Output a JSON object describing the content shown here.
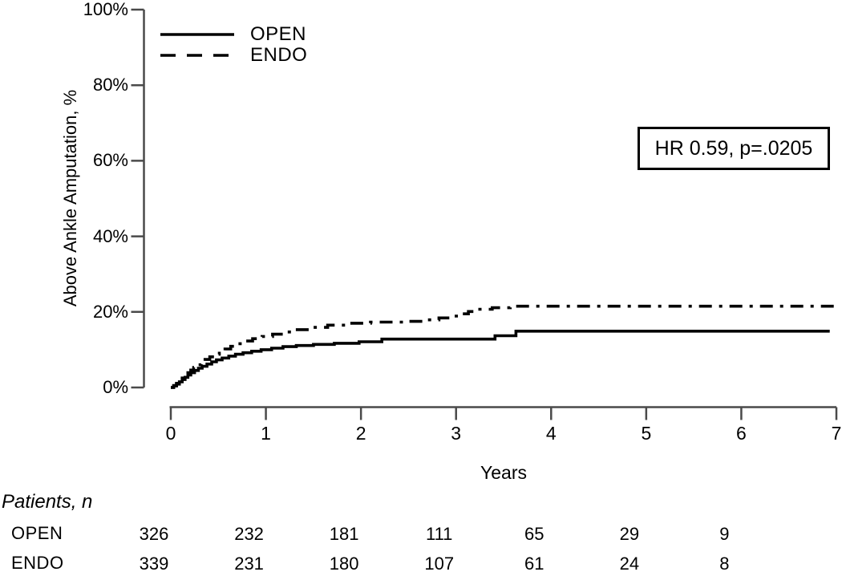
{
  "chart_data": {
    "type": "line",
    "subtype": "kaplan-meier-step-cumulative-incidence",
    "title": "",
    "xlabel": "Years",
    "ylabel": "Above Ankle Amputation, %",
    "xlim": [
      0,
      7
    ],
    "ylim": [
      0,
      100
    ],
    "xticks": [
      "0",
      "1",
      "2",
      "3",
      "4",
      "5",
      "6",
      "7"
    ],
    "yticks": [
      {
        "label": "0%",
        "value": 0
      },
      {
        "label": "20%",
        "value": 20
      },
      {
        "label": "40%",
        "value": 40
      },
      {
        "label": "60%",
        "value": 60
      },
      {
        "label": "80%",
        "value": 80
      },
      {
        "label": "100%",
        "value": 100
      }
    ],
    "grid": false,
    "legend_position": "top-left-inside",
    "annotation": "HR 0.59, p=.0205",
    "series": [
      {
        "name": "OPEN",
        "line": "solid",
        "color": "#000000",
        "points": [
          [
            0,
            0
          ],
          [
            0.03,
            0.4
          ],
          [
            0.06,
            0.9
          ],
          [
            0.09,
            1.5
          ],
          [
            0.12,
            2.1
          ],
          [
            0.15,
            2.7
          ],
          [
            0.18,
            3.3
          ],
          [
            0.21,
            3.9
          ],
          [
            0.25,
            4.5
          ],
          [
            0.29,
            5.1
          ],
          [
            0.33,
            5.6
          ],
          [
            0.38,
            6.2
          ],
          [
            0.43,
            6.8
          ],
          [
            0.48,
            7.3
          ],
          [
            0.54,
            7.8
          ],
          [
            0.61,
            8.3
          ],
          [
            0.68,
            8.8
          ],
          [
            0.76,
            9.2
          ],
          [
            0.85,
            9.6
          ],
          [
            0.95,
            10.0
          ],
          [
            1.06,
            10.4
          ],
          [
            1.18,
            10.8
          ],
          [
            1.32,
            11.1
          ],
          [
            1.5,
            11.4
          ],
          [
            1.72,
            11.7
          ],
          [
            1.98,
            12.1
          ],
          [
            2.22,
            12.8
          ],
          [
            3.41,
            13.7
          ],
          [
            3.63,
            14.9
          ],
          [
            6.93,
            14.9
          ]
        ]
      },
      {
        "name": "ENDO",
        "line": "dashed",
        "color": "#000000",
        "points": [
          [
            0,
            0
          ],
          [
            0.03,
            0.5
          ],
          [
            0.06,
            1.1
          ],
          [
            0.09,
            1.8
          ],
          [
            0.12,
            2.5
          ],
          [
            0.15,
            3.2
          ],
          [
            0.18,
            3.9
          ],
          [
            0.21,
            4.6
          ],
          [
            0.24,
            5.3
          ],
          [
            0.28,
            6.0
          ],
          [
            0.32,
            6.7
          ],
          [
            0.36,
            7.4
          ],
          [
            0.41,
            8.1
          ],
          [
            0.46,
            8.8
          ],
          [
            0.51,
            9.5
          ],
          [
            0.57,
            10.2
          ],
          [
            0.63,
            10.9
          ],
          [
            0.7,
            11.6
          ],
          [
            0.78,
            12.3
          ],
          [
            0.86,
            12.9
          ],
          [
            0.96,
            13.5
          ],
          [
            1.07,
            14.1
          ],
          [
            1.19,
            14.7
          ],
          [
            1.33,
            15.3
          ],
          [
            1.48,
            15.9
          ],
          [
            1.65,
            16.5
          ],
          [
            1.85,
            17.0
          ],
          [
            2.1,
            17.3
          ],
          [
            2.45,
            17.5
          ],
          [
            2.7,
            17.9
          ],
          [
            2.82,
            18.4
          ],
          [
            2.93,
            18.9
          ],
          [
            3.03,
            19.5
          ],
          [
            3.13,
            20.1
          ],
          [
            3.23,
            20.7
          ],
          [
            3.38,
            21.1
          ],
          [
            3.57,
            21.5
          ],
          [
            7.02,
            21.5
          ]
        ]
      }
    ],
    "risk_table": {
      "title": "Patients, n",
      "times": [
        0,
        1,
        2,
        3,
        4,
        5,
        6
      ],
      "rows": [
        {
          "name": "OPEN",
          "counts": [
            "326",
            "232",
            "181",
            "111",
            "65",
            "29",
            "9"
          ]
        },
        {
          "name": "ENDO",
          "counts": [
            "339",
            "231",
            "180",
            "107",
            "61",
            "24",
            "8"
          ]
        }
      ]
    }
  },
  "colors": {
    "curve": "#000000",
    "axis": "#4a4a4a",
    "background": "#ffffff",
    "annotation_border": "#000000"
  }
}
